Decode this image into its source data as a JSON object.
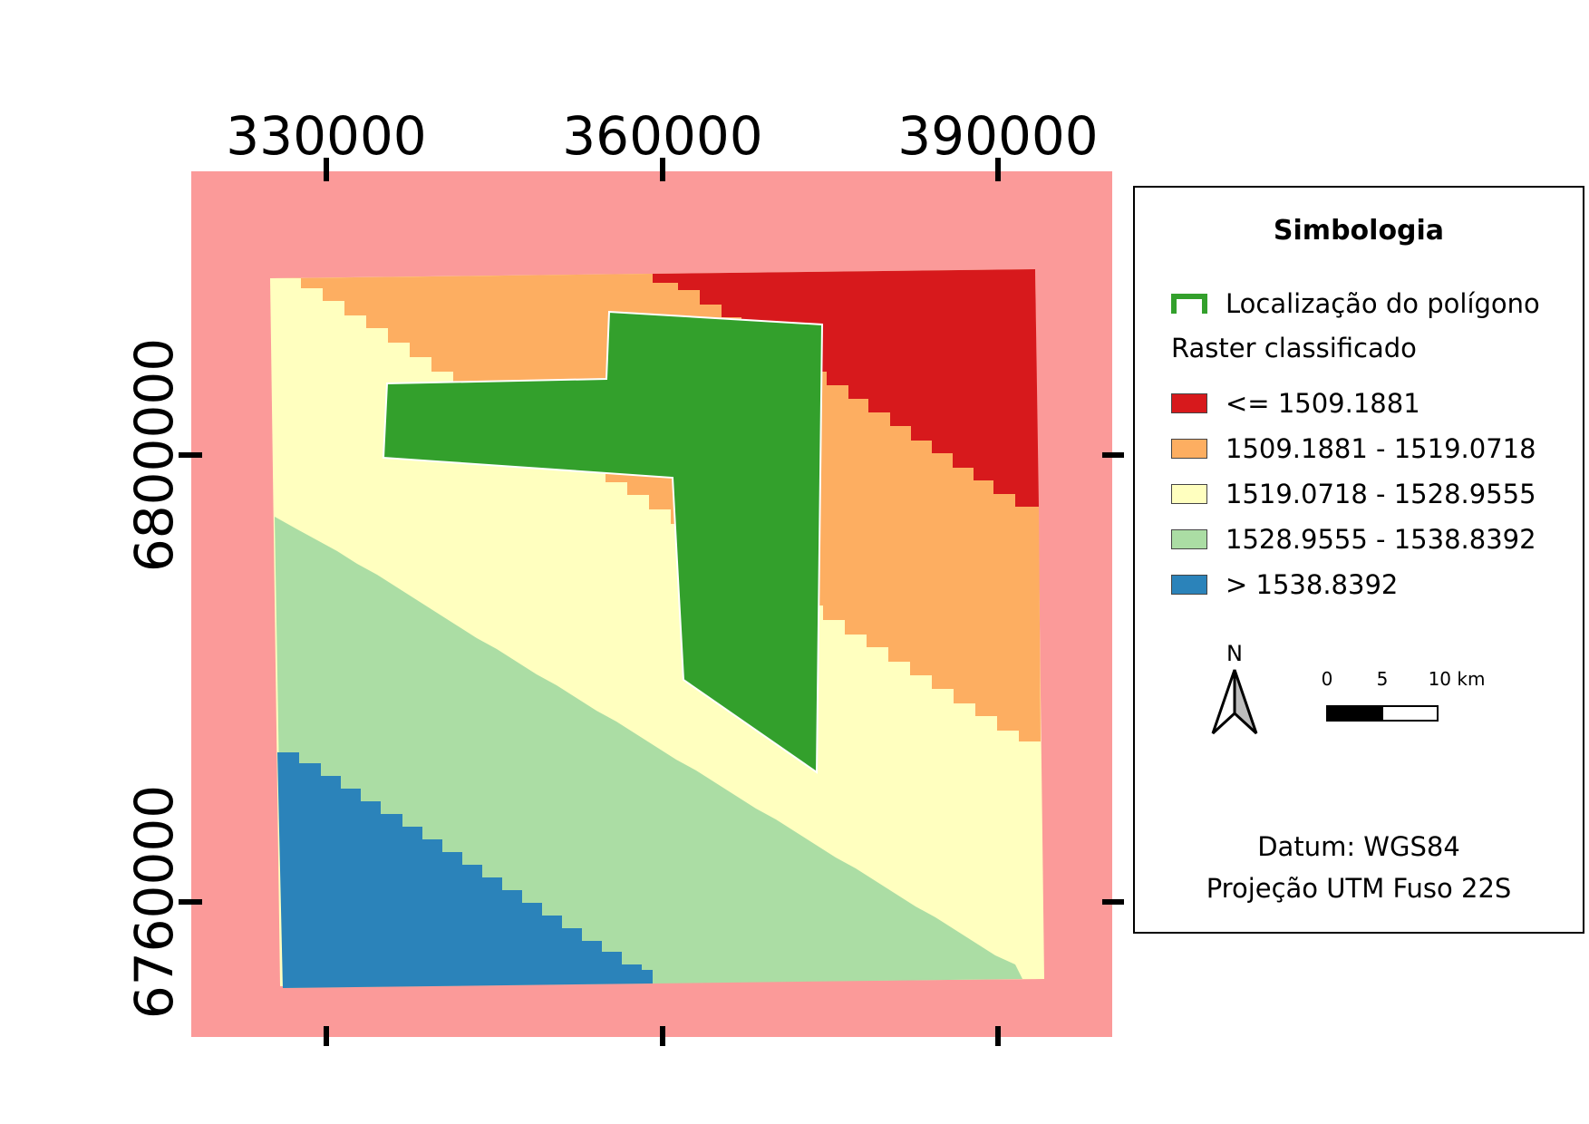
{
  "map": {
    "x_ticks": [
      "330000",
      "360000",
      "390000"
    ],
    "y_ticks": [
      "6800000",
      "6760000"
    ],
    "colors": {
      "background": "#fb9a99",
      "class1": "#d7191c",
      "class2": "#fdae61",
      "class3": "#ffffbf",
      "class4": "#abdda4",
      "class5": "#2b83ba",
      "polygon": "#33a02c"
    }
  },
  "legend": {
    "title": "Simbologia",
    "polygon_label": "Localização do polígono",
    "raster_label": "Raster classificado",
    "classes": [
      {
        "label": "<= 1509.1881",
        "color": "#d7191c"
      },
      {
        "label": "1509.1881 - 1519.0718",
        "color": "#fdae61"
      },
      {
        "label": "1519.0718 - 1528.9555",
        "color": "#ffffbf"
      },
      {
        "label": "1528.9555 - 1538.8392",
        "color": "#abdda4"
      },
      {
        "label": "> 1538.8392",
        "color": "#2b83ba"
      }
    ],
    "north_letter": "N",
    "north_icon": "north-arrow-icon",
    "scale_labels": [
      "0",
      "5",
      "10 km"
    ],
    "datum": "Datum: WGS84",
    "projection": "Projeção UTM Fuso 22S"
  }
}
